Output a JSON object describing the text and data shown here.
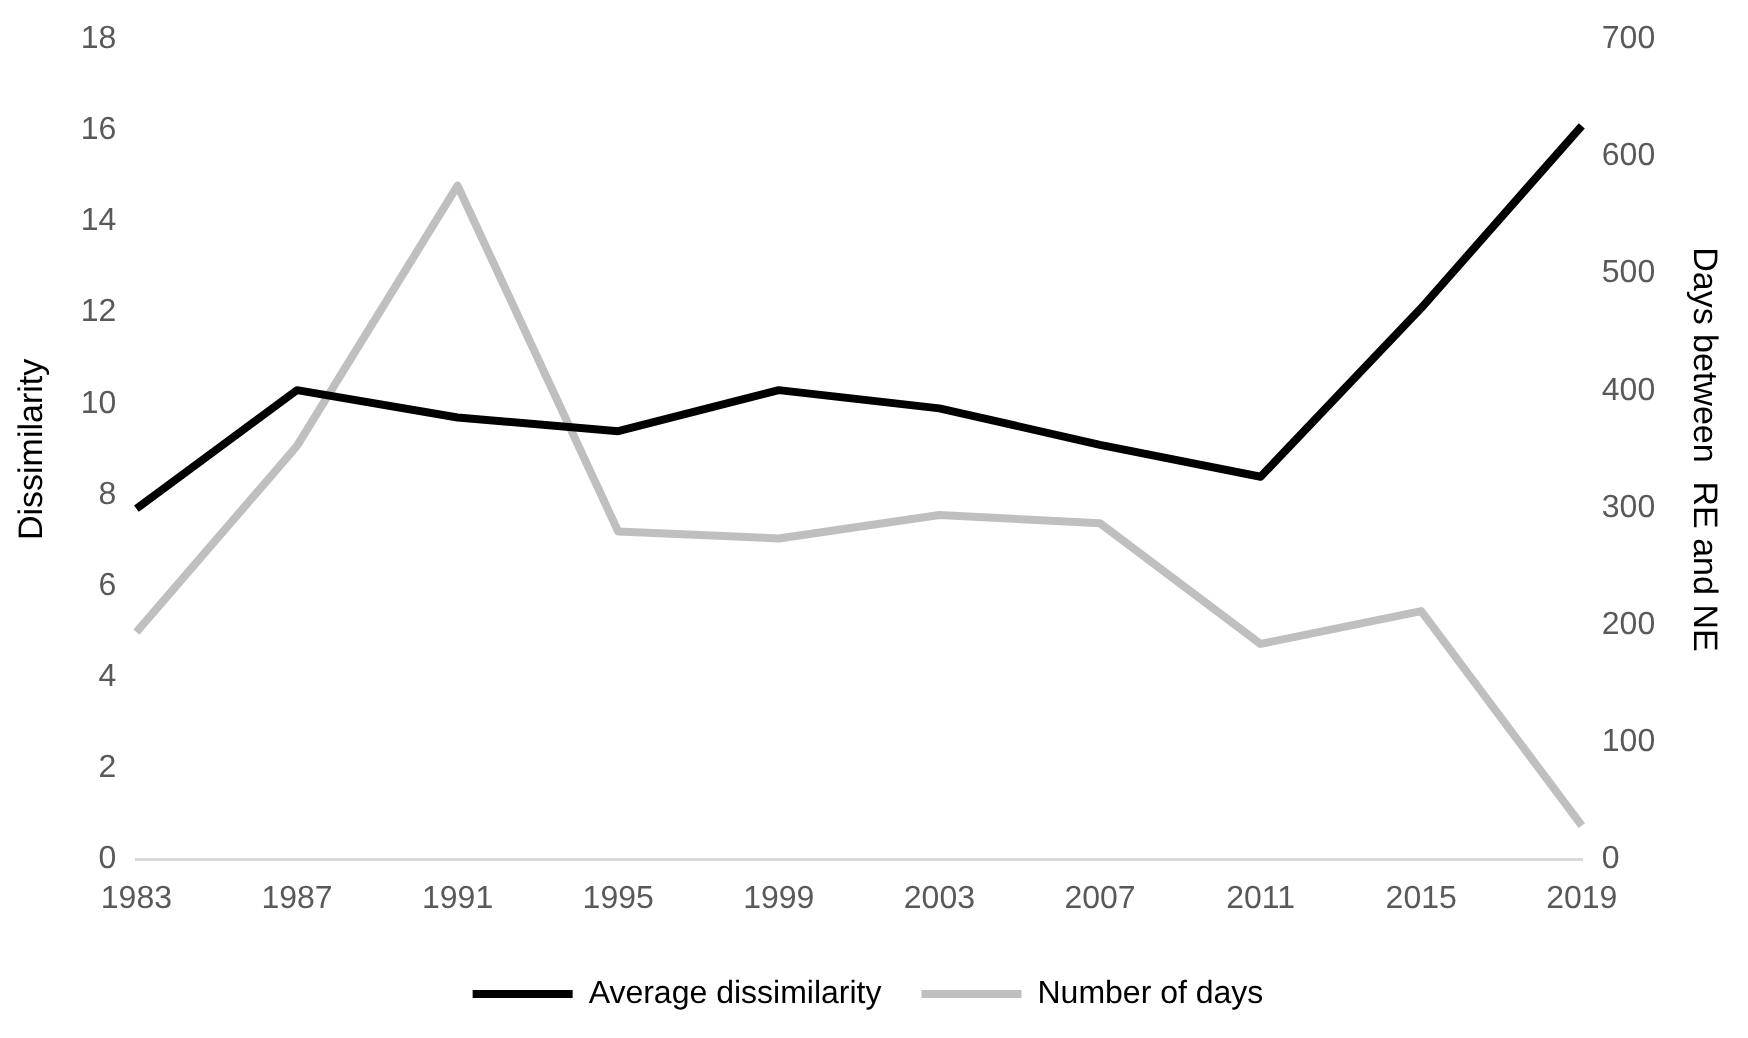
{
  "chart_data": {
    "type": "line",
    "ylabel": "Dissimilarity",
    "y2label": "Days between  RE and NE",
    "categories": [
      "1983",
      "1987",
      "1991",
      "1995",
      "1999",
      "2003",
      "2007",
      "2011",
      "2015",
      "2019"
    ],
    "series": [
      {
        "name": "Average dissimilarity",
        "color": "#000000",
        "values": [
          7.7,
          10.3,
          9.7,
          9.4,
          10.3,
          9.9,
          9.1,
          8.4,
          12.1,
          16.1
        ]
      },
      {
        "name": "Number of days",
        "color": "#bfbfbf",
        "axis": "y2",
        "values": [
          194,
          353,
          575,
          280,
          274,
          294,
          287,
          184,
          212,
          29
        ]
      }
    ],
    "ylim": [
      0,
      18
    ],
    "yticks": [
      0,
      2,
      4,
      6,
      8,
      10,
      12,
      14,
      16,
      18
    ],
    "y2lim": [
      0,
      700
    ],
    "y2ticks": [
      0,
      100,
      200,
      300,
      400,
      500,
      600,
      700
    ],
    "grid": false,
    "legend": "bottom",
    "marker": "none",
    "line_style": "solid"
  }
}
